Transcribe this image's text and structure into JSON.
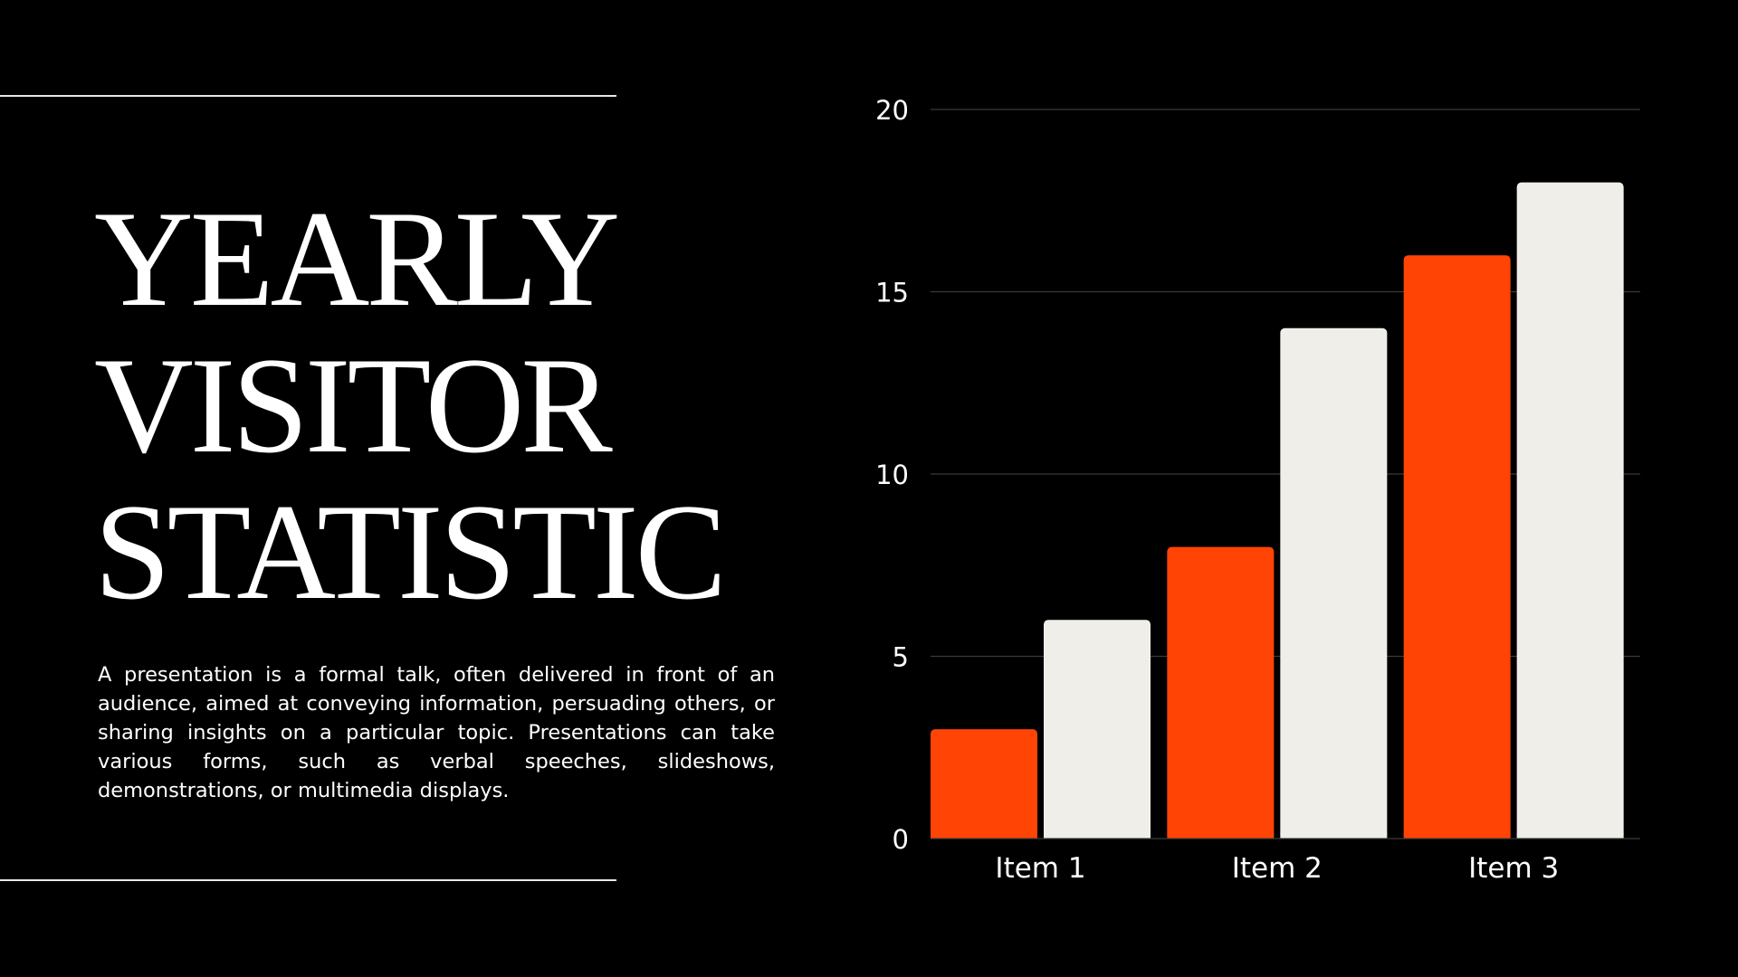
{
  "slide": {
    "title_lines": [
      "YEARLY",
      "VISITOR",
      "STATISTIC"
    ],
    "description": "A presentation is a formal talk, often delivered in front of an audience, aimed at conveying information, persuading others, or sharing insights on a particular topic. Presentations can take various forms, such as verbal speeches, slideshows, demonstrations, or multimedia displays."
  },
  "colors": {
    "background": "#000000",
    "accent": "#ff4405",
    "light": "#f0eee9",
    "text": "#ffffff",
    "gridline": "#3a3a3a"
  },
  "chart_data": {
    "type": "bar",
    "title": "",
    "xlabel": "",
    "ylabel": "",
    "categories": [
      "Item 1",
      "Item 2",
      "Item 3"
    ],
    "series": [
      {
        "values": [
          3,
          8,
          16
        ],
        "color": "#ff4405"
      },
      {
        "values": [
          6,
          14,
          18
        ],
        "color": "#f0eee9"
      }
    ],
    "ylim": [
      0,
      20
    ],
    "yticks": [
      0,
      5,
      10,
      15,
      20
    ],
    "grid": true,
    "legend": "none"
  }
}
